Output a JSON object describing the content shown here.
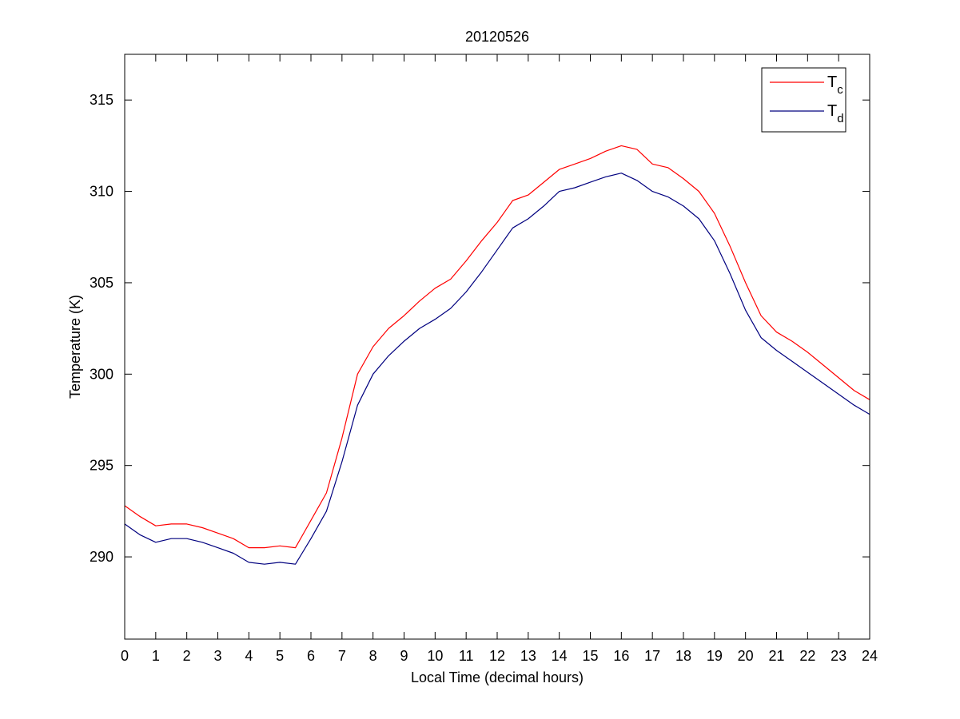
{
  "chart_data": {
    "type": "line",
    "title": "20120526",
    "xlabel": "Local Time (decimal hours)",
    "ylabel": "Temperature (K)",
    "xlim": [
      0,
      24
    ],
    "ylim": [
      285.5,
      317.5
    ],
    "x_ticks": [
      0,
      1,
      2,
      3,
      4,
      5,
      6,
      7,
      8,
      9,
      10,
      11,
      12,
      13,
      14,
      15,
      16,
      17,
      18,
      19,
      20,
      21,
      22,
      23,
      24
    ],
    "y_ticks": [
      290,
      295,
      300,
      305,
      310,
      315
    ],
    "grid": false,
    "legend_position": "top-right",
    "series": [
      {
        "name": "T",
        "subscript": "c",
        "color": "#ff0000",
        "x": [
          0,
          0.5,
          1,
          1.5,
          2,
          2.5,
          3,
          3.5,
          4,
          4.5,
          5,
          5.5,
          6,
          6.5,
          7,
          7.5,
          8,
          8.5,
          9,
          9.5,
          10,
          10.5,
          11,
          11.5,
          12,
          12.5,
          13,
          13.5,
          14,
          14.5,
          15,
          15.5,
          16,
          16.5,
          17,
          17.5,
          18,
          18.5,
          19,
          19.5,
          20,
          20.5,
          21,
          21.5,
          22,
          22.5,
          23,
          23.5,
          24
        ],
        "y": [
          292.8,
          292.2,
          291.7,
          291.8,
          291.8,
          291.6,
          291.3,
          291.0,
          290.5,
          290.5,
          290.6,
          290.5,
          292.0,
          293.5,
          296.5,
          300.0,
          301.5,
          302.5,
          303.2,
          304.0,
          304.7,
          305.2,
          306.2,
          307.3,
          308.3,
          309.5,
          309.8,
          310.5,
          311.2,
          311.5,
          311.8,
          312.2,
          312.5,
          312.3,
          311.5,
          311.3,
          310.7,
          310.0,
          308.8,
          307.0,
          305.0,
          303.2,
          302.3,
          301.8,
          301.2,
          300.5,
          299.8,
          299.1,
          298.6
        ]
      },
      {
        "name": "T",
        "subscript": "d",
        "color": "#00007f",
        "x": [
          0,
          0.5,
          1,
          1.5,
          2,
          2.5,
          3,
          3.5,
          4,
          4.5,
          5,
          5.5,
          6,
          6.5,
          7,
          7.5,
          8,
          8.5,
          9,
          9.5,
          10,
          10.5,
          11,
          11.5,
          12,
          12.5,
          13,
          13.5,
          14,
          14.5,
          15,
          15.5,
          16,
          16.5,
          17,
          17.5,
          18,
          18.5,
          19,
          19.5,
          20,
          20.5,
          21,
          21.5,
          22,
          22.5,
          23,
          23.5,
          24
        ],
        "y": [
          291.8,
          291.2,
          290.8,
          291.0,
          291.0,
          290.8,
          290.5,
          290.2,
          289.7,
          289.6,
          289.7,
          289.6,
          291.0,
          292.5,
          295.2,
          298.3,
          300.0,
          301.0,
          301.8,
          302.5,
          303.0,
          303.6,
          304.5,
          305.6,
          306.8,
          308.0,
          308.5,
          309.2,
          310.0,
          310.2,
          310.5,
          310.8,
          311.0,
          310.6,
          310.0,
          309.7,
          309.2,
          308.5,
          307.3,
          305.5,
          303.5,
          302.0,
          301.3,
          300.7,
          300.1,
          299.5,
          298.9,
          298.3,
          297.8
        ]
      }
    ]
  }
}
